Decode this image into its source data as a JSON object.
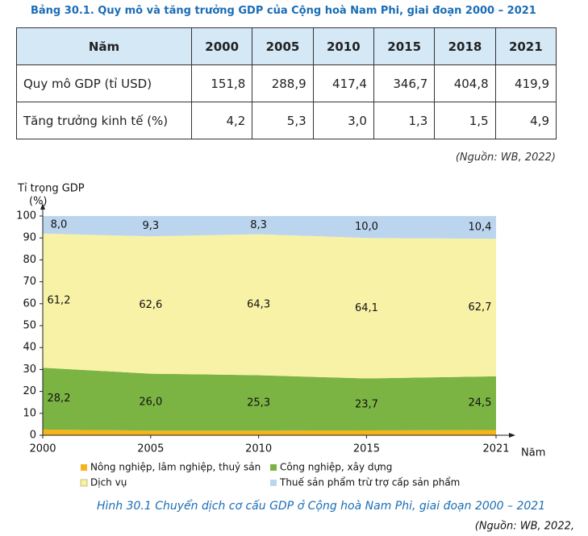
{
  "table": {
    "title": "Bảng 30.1. Quy mô và tăng trưởng GDP của Cộng hoà Nam Phi, giai đoạn 2000 – 2021",
    "header": [
      "Năm",
      "2000",
      "2005",
      "2010",
      "2015",
      "2018",
      "2021"
    ],
    "rows": [
      [
        "Quy mô GDP (tỉ USD)",
        "151,8",
        "288,9",
        "417,4",
        "346,7",
        "404,8",
        "419,9"
      ],
      [
        "Tăng trưởng kinh tế (%)",
        "4,2",
        "5,3",
        "3,0",
        "1,3",
        "1,5",
        "4,9"
      ]
    ],
    "source": "(Nguồn: WB, 2022)"
  },
  "chart_data": {
    "type": "stacked_area",
    "y_label": "Tỉ trọng GDP",
    "y_unit": "(%)",
    "x_label": "Năm",
    "x": [
      2000,
      2005,
      2010,
      2015,
      2021
    ],
    "xlim": [
      2000,
      2021
    ],
    "xticks": [
      2000,
      2005,
      2010,
      2015,
      2021
    ],
    "ylim": [
      0,
      100
    ],
    "yticks": [
      0,
      10,
      20,
      30,
      40,
      50,
      60,
      70,
      80,
      90,
      100
    ],
    "grid": false,
    "series": [
      {
        "name": "Nông nghiệp, lâm nghiệp, thuỷ sản",
        "color": "#f4b41a",
        "values": [
          2.6,
          2.1,
          2.1,
          2.2,
          2.4
        ],
        "value_labels": [
          "2,6",
          "2,1",
          "2,1",
          "2,2",
          "2,4"
        ]
      },
      {
        "name": "Công nghiệp, xây dựng",
        "color": "#7bb443",
        "values": [
          28.2,
          26.0,
          25.3,
          23.7,
          24.5
        ],
        "value_labels": [
          "28,2",
          "26,0",
          "25,3",
          "23,7",
          "24,5"
        ]
      },
      {
        "name": "Dịch vụ",
        "color": "#f8f2a6",
        "values": [
          61.2,
          62.6,
          64.3,
          64.1,
          62.7
        ],
        "value_labels": [
          "61,2",
          "62,6",
          "64,3",
          "64,1",
          "62,7"
        ]
      },
      {
        "name": "Thuế sản phẩm trừ trợ cấp sản phẩm",
        "color": "#bcd5ee",
        "values": [
          8.0,
          9.3,
          8.3,
          10.0,
          10.4
        ],
        "value_labels": [
          "8,0",
          "9,3",
          "8,3",
          "10,0",
          "10,4"
        ]
      }
    ]
  },
  "caption": "Hình 30.1 Chuyển dịch cơ cấu GDP ở Cộng hoà Nam Phi, giai đoạn 2000 – 2021",
  "source": "(Nguồn: WB, 2022,"
}
